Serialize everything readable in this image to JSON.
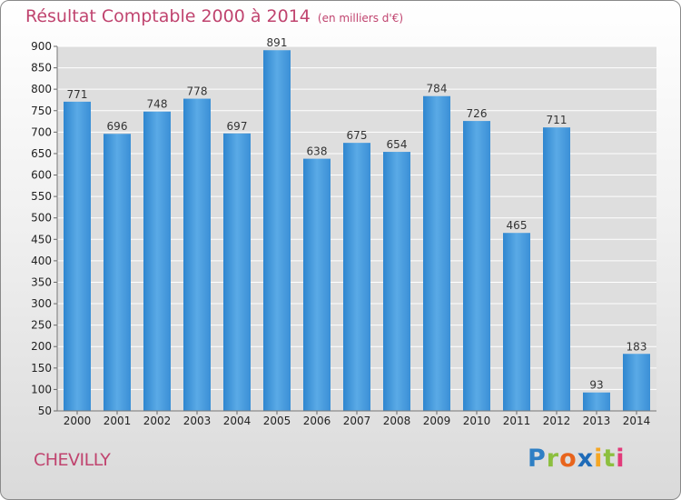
{
  "chart_data": {
    "type": "bar",
    "title": "Résultat Comptable 2000 à 2014",
    "subtitle": "(en milliers d'€)",
    "categories": [
      "2000",
      "2001",
      "2002",
      "2003",
      "2004",
      "2005",
      "2006",
      "2007",
      "2008",
      "2009",
      "2010",
      "2011",
      "2012",
      "2013",
      "2014"
    ],
    "values": [
      771,
      696,
      748,
      778,
      697,
      891,
      638,
      675,
      654,
      784,
      726,
      465,
      711,
      93,
      183
    ],
    "value_labels": [
      "771",
      "696",
      "748",
      "778",
      "697",
      "891",
      "638",
      "675",
      "654",
      "784",
      "726",
      "465",
      "711",
      "93",
      "183"
    ],
    "ylim": [
      50,
      900
    ],
    "yticks": [
      "50",
      "100",
      "150",
      "200",
      "250",
      "300",
      "350",
      "400",
      "450",
      "500",
      "550",
      "600",
      "650",
      "700",
      "750",
      "800",
      "850",
      "900"
    ],
    "grid": true,
    "bar_color": "#4a9ee0"
  },
  "footer": {
    "commune": "CHEVILLY",
    "logo_letters": [
      "P",
      "r",
      "o",
      "x",
      "i",
      "t",
      "i"
    ]
  }
}
